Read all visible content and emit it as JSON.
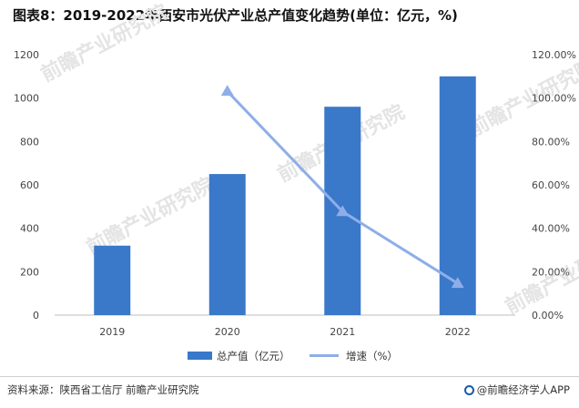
{
  "title": "图表8：2019-2022年西安市光伏产业总产值变化趋势(单位：亿元，%)",
  "footer": {
    "source": "资料来源：陕西省工信厅 前瞻产业研究院",
    "brand": "@前瞻经济学人APP"
  },
  "watermark": "前瞻产业研究院",
  "colors": {
    "bar": "#3a78c9",
    "line": "#8eaee8"
  },
  "chart_data": {
    "type": "bar",
    "categories": [
      "2019",
      "2020",
      "2021",
      "2022"
    ],
    "series": [
      {
        "name": "总产值（亿元）",
        "type": "bar",
        "axis": "left",
        "values": [
          320,
          650,
          960,
          1100
        ]
      },
      {
        "name": "增速（%）",
        "type": "line",
        "axis": "right",
        "values": [
          null,
          103.1,
          47.7,
          14.6
        ]
      }
    ],
    "y_left": {
      "min": 0,
      "max": 1200,
      "ticks": [
        "0",
        "200",
        "400",
        "600",
        "800",
        "1000",
        "1200"
      ]
    },
    "y_right": {
      "min": 0,
      "max": 120,
      "ticks": [
        "0.00%",
        "20.00%",
        "40.00%",
        "60.00%",
        "80.00%",
        "100.00%",
        "120.00%"
      ]
    },
    "grid": false,
    "legend": "bottom"
  }
}
